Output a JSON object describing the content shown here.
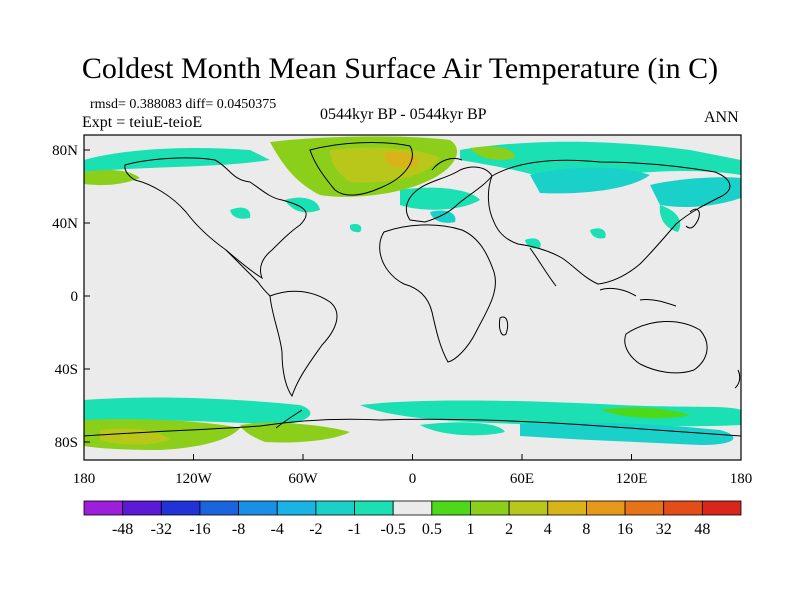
{
  "title": "Coldest Month Mean Surface Air Temperature (in C)",
  "stats_line": "rmsd= 0.388083 diff= 0.0450375",
  "experiment_line": "Expt = teiuE-teioE",
  "period_line": "0544kyr BP - 0544kyr BP",
  "season_label": "ANN",
  "x_ticks": [
    "180",
    "120W",
    "60W",
    "0",
    "60E",
    "120E",
    "180"
  ],
  "y_ticks": [
    "80N",
    "40N",
    "0",
    "40S",
    "80S"
  ],
  "colorbar": {
    "colors": [
      "#9e1fd9",
      "#5c19d6",
      "#2133d6",
      "#1a64e0",
      "#1a8fe6",
      "#19b3e6",
      "#1ad1c9",
      "#1ae0b3",
      "#ebebeb",
      "#4dd91a",
      "#8ccf1a",
      "#b8c71a",
      "#d9b31a",
      "#e6991a",
      "#e6731a",
      "#e34d1a",
      "#d9261a"
    ],
    "labels": [
      "-48",
      "-32",
      "-16",
      "-8",
      "-4",
      "-2",
      "-1",
      "-0.5",
      "0.5",
      "1",
      "2",
      "4",
      "8",
      "16",
      "32",
      "48"
    ]
  }
}
